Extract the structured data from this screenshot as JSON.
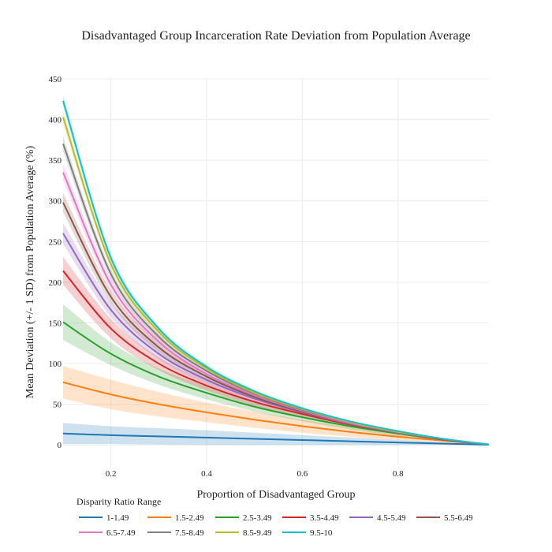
{
  "chart_data": {
    "type": "line",
    "title": "Disadvantaged Group Incarceration Rate Deviation from Population Average",
    "xlabel": "Proportion of Disadvantaged Group",
    "ylabel": "Mean Deviation (+/- 1 SD) from Population Average (%)",
    "xlim": [
      0.1,
      0.99
    ],
    "ylim": [
      -25,
      450
    ],
    "x_ticks": [
      0.2,
      0.4,
      0.6,
      0.8
    ],
    "y_ticks": [
      0,
      50,
      100,
      150,
      200,
      250,
      300,
      350,
      400,
      450
    ],
    "x_tick_labels": [
      "0.2",
      "0.4",
      "0.6",
      "0.8"
    ],
    "y_tick_labels": [
      "0",
      "50",
      "100",
      "150",
      "200",
      "250",
      "300",
      "350",
      "400",
      "450"
    ],
    "grid": true,
    "legend": {
      "title": "Disparity Ratio Range",
      "placement": "bottom"
    },
    "x": [
      0.1,
      0.2,
      0.3,
      0.4,
      0.5,
      0.6,
      0.7,
      0.8,
      0.9,
      0.99
    ],
    "series": [
      {
        "name": "1-1.49",
        "color": "#1f77b4",
        "values": [
          14,
          12,
          10.5,
          9,
          7.5,
          6,
          4.5,
          3,
          1.5,
          0.2
        ],
        "sd": [
          13,
          11,
          10,
          9,
          7.5,
          6,
          4.5,
          3,
          1.5,
          0.2
        ]
      },
      {
        "name": "1.5-2.49",
        "color": "#ff7f0e",
        "values": [
          77,
          62,
          50,
          40,
          31,
          23,
          16,
          10,
          5,
          0.5
        ],
        "sd": [
          20,
          18,
          15,
          12,
          10,
          8,
          6,
          4,
          2,
          0.3
        ]
      },
      {
        "name": "2.5-3.49",
        "color": "#2ca02c",
        "values": [
          151,
          112,
          84,
          64,
          47,
          34,
          23,
          14,
          6,
          0.5
        ],
        "sd": [
          22,
          14,
          10,
          8,
          6,
          5,
          4,
          3,
          2,
          0.3
        ]
      },
      {
        "name": "3.5-4.49",
        "color": "#d62728",
        "values": [
          214,
          143,
          100,
          73,
          53,
          38,
          25,
          15,
          6,
          0.5
        ],
        "sd": [
          17,
          12,
          8,
          6,
          5,
          4,
          3,
          2,
          1,
          0.3
        ]
      },
      {
        "name": "4.5-5.49",
        "color": "#9467bd",
        "values": [
          260,
          166,
          112,
          80,
          57,
          40,
          26,
          15,
          6,
          0.5
        ],
        "sd": [
          13,
          9,
          7,
          5,
          4,
          3,
          2,
          2,
          1,
          0.3
        ]
      },
      {
        "name": "5.5-6.49",
        "color": "#8c564b",
        "values": [
          298,
          182,
          120,
          84,
          59,
          41,
          27,
          16,
          6,
          0.5
        ],
        "sd": [
          12,
          8,
          6,
          4,
          3,
          3,
          2,
          1,
          1,
          0.3
        ]
      },
      {
        "name": "6.5-7.49",
        "color": "#e377c2",
        "values": [
          335,
          197,
          127,
          87,
          61,
          42,
          27,
          16,
          7,
          0.5
        ],
        "sd": [
          10,
          7,
          5,
          4,
          3,
          2,
          2,
          1,
          1,
          0.3
        ]
      },
      {
        "name": "7.5-8.49",
        "color": "#7f7f7f",
        "values": [
          370,
          210,
          133,
          91,
          63,
          43,
          28,
          16,
          7,
          0.5
        ],
        "sd": [
          9,
          6,
          4,
          3,
          3,
          2,
          2,
          1,
          1,
          0.3
        ]
      },
      {
        "name": "8.5-9.49",
        "color": "#bcbd22",
        "values": [
          403,
          222,
          139,
          94,
          64,
          44,
          28,
          16,
          7,
          0.5
        ],
        "sd": [
          8,
          5,
          4,
          3,
          2,
          2,
          1,
          1,
          1,
          0.3
        ]
      },
      {
        "name": "9.5-10",
        "color": "#17becf",
        "values": [
          423,
          230,
          143,
          96,
          66,
          45,
          29,
          17,
          7,
          0.5
        ],
        "sd": [
          7,
          5,
          3,
          3,
          2,
          2,
          1,
          1,
          1,
          0.3
        ]
      }
    ]
  }
}
